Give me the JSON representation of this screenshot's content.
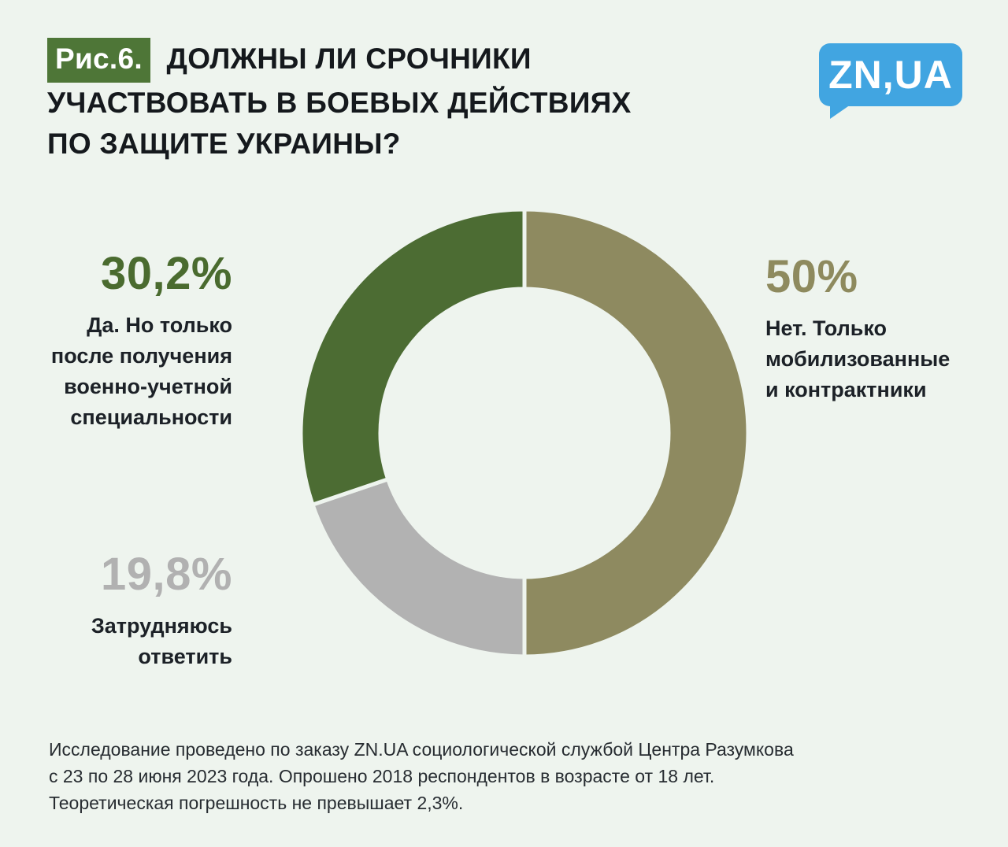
{
  "header": {
    "fig_label": "Рис.6.",
    "title_line1": "ДОЛЖНЫ ЛИ СРОЧНИКИ",
    "title_line2": "УЧАСТВОВАТЬ В БОЕВЫХ ДЕЙСТВИЯХ",
    "title_line3": "ПО ЗАЩИТЕ УКРАИНЫ?"
  },
  "logo": {
    "text": "ZN,UA",
    "background": "#41a5e1"
  },
  "colors": {
    "background": "#eef4ee",
    "badge_green": "#4e7637",
    "slice_olive": "#8e8a60",
    "slice_gray": "#b2b2b2",
    "slice_green": "#4c6c33",
    "text_dark": "#15191d"
  },
  "chart_data": {
    "type": "pie",
    "donut": true,
    "title": "Должны ли срочники участвовать в боевых действиях по защите Украины?",
    "start_angle_deg": 0,
    "direction": "clockwise",
    "slices": [
      {
        "label": "Нет. Только мобилизованные и контрактники",
        "value": 50,
        "display": "50%",
        "color": "#8e8a60"
      },
      {
        "label": "Затрудняюсь ответить",
        "value": 19.8,
        "display": "19,8%",
        "color": "#b2b2b2"
      },
      {
        "label": "Да. Но только после получения военно-учетной специальности",
        "value": 30.2,
        "display": "30,2%",
        "color": "#4c6c33"
      }
    ]
  },
  "labels": {
    "left_top": {
      "percent": "30,2%",
      "lines": [
        "Да. Но только",
        "после получения",
        "военно-учетной",
        "специальности"
      ]
    },
    "left_bottom": {
      "percent": "19,8%",
      "lines": [
        "Затрудняюсь",
        "ответить"
      ]
    },
    "right": {
      "percent": "50%",
      "lines": [
        "Нет. Только",
        "мобилизованные",
        "и контрактники"
      ]
    }
  },
  "footer": {
    "lines": [
      "Исследование проведено по заказу ZN.UA социологической службой Центра Разумкова",
      "с 23 по 28 июня 2023 года. Опрошено 2018 респондентов в возрасте от 18 лет.",
      "Теоретическая погрешность не превышает 2,3%."
    ]
  }
}
